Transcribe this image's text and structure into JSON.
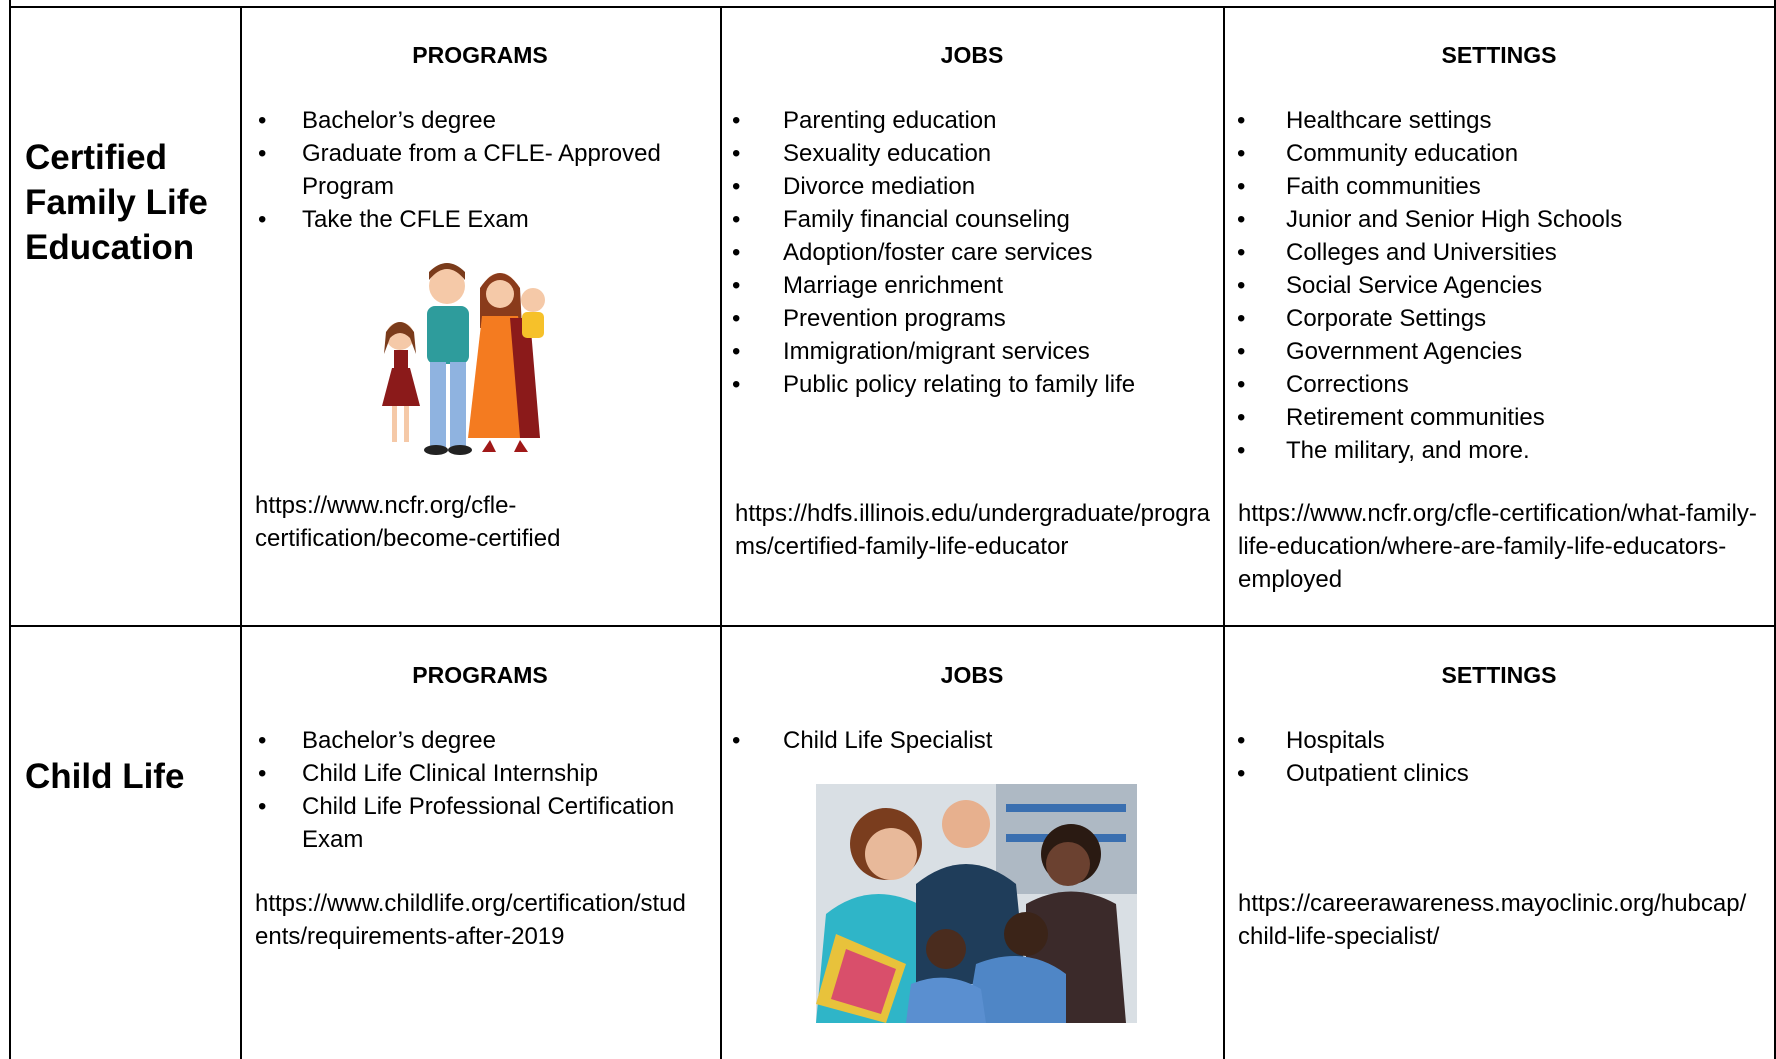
{
  "table": {
    "rows": [
      {
        "title": "Certified Family Life Education",
        "programs": {
          "header": "PROGRAMS",
          "items": [
            "Bachelor’s degree",
            "Graduate from a CFLE- Approved Program",
            "Take the CFLE Exam"
          ],
          "url": "https://www.ncfr.org/cfle-certification/become-certified"
        },
        "jobs": {
          "header": "JOBS",
          "items": [
            "Parenting education",
            "Sexuality education",
            "Divorce mediation",
            "Family financial counseling",
            "Adoption/foster care services",
            "Marriage enrichment",
            "Prevention programs",
            "Immigration/migrant services",
            "Public policy relating to family life"
          ],
          "url": "https://hdfs.illinois.edu/undergraduate/programs/certified-family-life-educator"
        },
        "settings": {
          "header": "SETTINGS",
          "items": [
            "Healthcare settings",
            "Community education",
            "Faith communities",
            "Junior and Senior High Schools",
            "Colleges and Universities",
            "Social Service Agencies",
            "Corporate Settings",
            "Government Agencies",
            "Corrections",
            "Retirement communities",
            "The military, and more."
          ],
          "url": "https://www.ncfr.org/cfle-certification/what-family-life-education/where-are-family-life-educators-employed"
        }
      },
      {
        "title": "Child Life",
        "programs": {
          "header": "PROGRAMS",
          "items": [
            "Bachelor’s degree",
            "Child Life Clinical Internship",
            "Child Life Professional Certification Exam"
          ],
          "url": "https://www.childlife.org/certification/students/requirements-after-2019"
        },
        "jobs": {
          "header": "JOBS",
          "items": [
            "Child Life Specialist"
          ],
          "url": null
        },
        "settings": {
          "header": "SETTINGS",
          "items": [
            "Hospitals",
            "Outpatient clinics"
          ],
          "url": "https://careerawareness.mayoclinic.org/hubcap/child-life-specialist/"
        }
      }
    ]
  }
}
